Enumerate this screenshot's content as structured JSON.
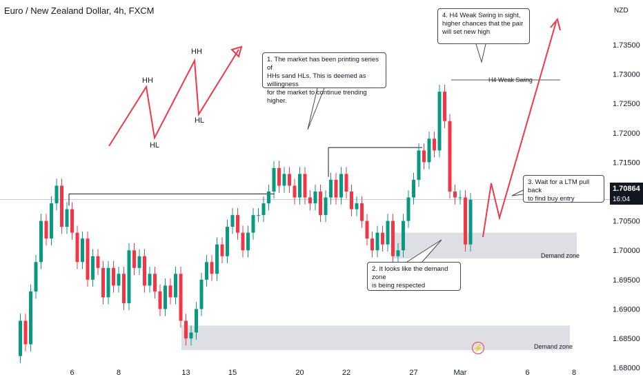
{
  "title": "Euro / New Zealand Dollar, 4h, FXCM",
  "currency": "NZD",
  "current_price": "1.70864",
  "countdown": "16:04",
  "colors": {
    "up": "#089981",
    "down": "#f23645",
    "zone": "#d1d4dc",
    "arrow": "#f23645",
    "priceTag": "#131722"
  },
  "callouts": [
    {
      "name": "callout-trend",
      "lines": [
        "1. The market has been printing series of",
        "HHs sand HLs. This is deemed as willingness",
        "for the market to continue trending higher."
      ]
    },
    {
      "name": "callout-demand",
      "lines": [
        "2. It looks like the demand zone",
        "is being respected"
      ]
    },
    {
      "name": "callout-entry",
      "lines": [
        "3. Wait for a LTM pull back",
        "to find buy entry"
      ]
    },
    {
      "name": "callout-swing",
      "lines": [
        "4. H4 Weak Swing in sight,",
        "higher chances that the pair",
        "will set new high"
      ]
    }
  ],
  "chart_data": {
    "type": "candlestick",
    "title": "Euro / New Zealand Dollar, 4h, FXCM",
    "y_axis_unit": "NZD",
    "ylim": [
      1.6795,
      1.7405
    ],
    "y_ticks": [
      "1.68000",
      "1.68500",
      "1.69000",
      "1.69500",
      "1.70000",
      "1.70500",
      "1.71000",
      "1.71500",
      "1.72000",
      "1.72500",
      "1.73000",
      "1.73500"
    ],
    "y_tick_values": [
      1.68,
      1.685,
      1.69,
      1.695,
      1.7,
      1.705,
      1.71,
      1.715,
      1.72,
      1.725,
      1.73,
      1.735
    ],
    "x_ticks": [
      "6",
      "8",
      "13",
      "15",
      "20",
      "22",
      "27",
      "Mar",
      "6",
      "8"
    ],
    "x_tick_index": [
      11,
      20,
      33,
      42,
      55,
      64,
      77,
      86,
      99,
      108
    ],
    "last_price": 1.70864,
    "close_path": [
      1.682,
      1.688,
      1.684,
      1.693,
      1.698,
      1.705,
      1.702,
      1.708,
      1.711,
      1.704,
      1.707,
      1.703,
      1.698,
      1.702,
      1.695,
      1.699,
      1.697,
      1.692,
      1.697,
      1.694,
      1.696,
      1.691,
      1.7,
      1.697,
      1.699,
      1.694,
      1.696,
      1.693,
      1.69,
      1.694,
      1.692,
      1.696,
      1.688,
      1.685,
      1.686,
      1.69,
      1.695,
      1.698,
      1.696,
      1.701,
      1.699,
      1.704,
      1.706,
      1.703,
      1.7,
      1.703,
      1.706,
      1.706,
      1.708,
      1.71,
      1.714,
      1.711,
      1.713,
      1.711,
      1.709,
      1.713,
      1.709,
      1.708,
      1.71,
      1.706,
      1.709,
      1.712,
      1.709,
      1.713,
      1.71,
      1.707,
      1.708,
      1.705,
      1.702,
      1.7,
      1.703,
      1.701,
      1.705,
      1.699,
      1.7,
      1.705,
      1.709,
      1.712,
      1.717,
      1.715,
      1.719,
      1.717,
      1.727,
      1.722,
      1.71,
      1.709,
      1.709,
      1.701,
      1.7086
    ],
    "annotations": [
      {
        "text": "HH"
      },
      {
        "text": "HL"
      },
      {
        "text": "HH"
      },
      {
        "text": "HL"
      },
      {
        "text": "H4 Weak Swing",
        "level": 1.729
      },
      {
        "text": "Demand zone",
        "range": [
          1.6986,
          1.703
        ]
      },
      {
        "text": "Demand zone",
        "range": [
          1.683,
          1.6872
        ]
      }
    ]
  }
}
